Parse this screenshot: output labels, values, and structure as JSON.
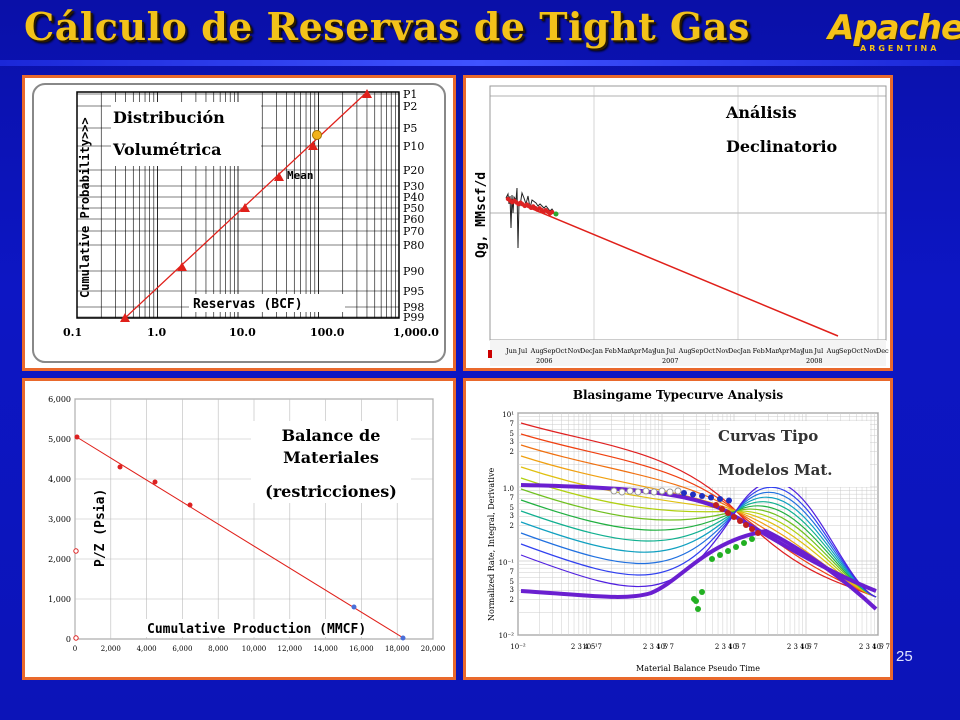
{
  "slide": {
    "title": "Cálculo de Reservas de Tight Gas",
    "page_number": "25",
    "logo": {
      "word": "Apache",
      "sub": "ARGENTINA"
    }
  },
  "panel1": {
    "label_line1": "Distribución",
    "label_line2": "Volumétrica",
    "y_axis_label": "Cumulative Probability>>>",
    "x_axis_label": "Reservas (BCF)",
    "x_ticks": [
      "0.1",
      "1.0",
      "10.0",
      "100.0",
      "1,000.0"
    ],
    "p_labels": [
      "P1",
      "P2",
      "P5",
      "P10",
      "P20",
      "P30",
      "P40",
      "P50",
      "P60",
      "P70",
      "P80",
      "P90",
      "P95",
      "P98",
      "P99"
    ],
    "mean_label": "Mean"
  },
  "panel2": {
    "label_line1": "Análisis",
    "label_line2": "Declinatorio",
    "y_axis_label": "Qg, MMscf/d",
    "months": [
      "Jun",
      "Jul",
      "Aug",
      "Sep",
      "Oct",
      "Nov",
      "Dec",
      "Jan",
      "Feb",
      "Mar",
      "Apr",
      "May",
      "Jun",
      "Jul",
      "Aug",
      "Sep",
      "Oct",
      "Nov",
      "Dec",
      "Jan",
      "Feb",
      "Mar",
      "Apr",
      "May",
      "Jun",
      "Jul",
      "Aug",
      "Sep",
      "Oct",
      "Nov",
      "Dec"
    ],
    "years": [
      "2006",
      "2007",
      "2008"
    ]
  },
  "panel3": {
    "label_line1": "Balance de",
    "label_line2": "Materiales",
    "label_line3": "(restricciones)",
    "y_axis_label": "P/Z (Psia)",
    "x_axis_label": "Cumulative Production (MMCF)",
    "y_ticks": [
      "0",
      "1,000",
      "2,000",
      "3,000",
      "4,000",
      "5,000",
      "6,000"
    ],
    "x_ticks": [
      "0",
      "2,000",
      "4,000",
      "6,000",
      "8,000",
      "10,000",
      "12,000",
      "14,000",
      "16,000",
      "18,000",
      "20,000"
    ]
  },
  "panel4": {
    "chart_title": "Blasingame Typecurve Analysis",
    "label_line1": "Curvas Tipo",
    "label_line2": "Modelos Mat.",
    "x_axis_label": "Material Balance Pseudo Time",
    "y_axis_label": "Normalized Rate, Integral, Derivative",
    "y_ticks": [
      "10¹",
      "7",
      "5",
      "3",
      "2",
      "1.0",
      "7",
      "5",
      "3",
      "2",
      "10⁻¹",
      "7",
      "5",
      "3",
      "2",
      "10⁻²"
    ],
    "x_ticks": [
      "10⁻²",
      "2 3 4 5 7",
      "10⁻¹",
      "2 3 4 5 7",
      "10⁰",
      "2 3 4 5 7",
      "10¹",
      "2 3 4 5 7",
      "10²",
      "2 3 4 5 7",
      "10³"
    ]
  },
  "colors": {
    "background": "#0c13b8",
    "title": "#f2c21a",
    "panel_border": "#e9692c",
    "trend": "#e0201a"
  }
}
